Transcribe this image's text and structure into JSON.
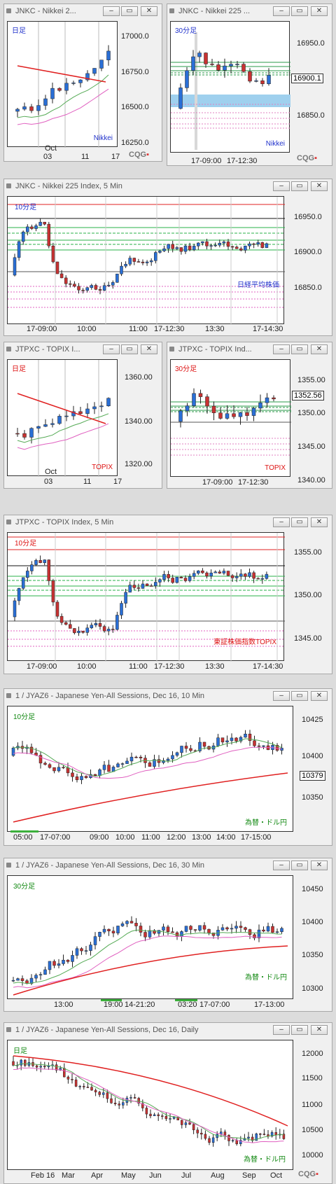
{
  "windows": [
    {
      "id": "w1",
      "title": "JNKC - Nikkei 2...",
      "tf": "日足",
      "tf_color": "#2233cc",
      "sym": "Nikkei",
      "sym_color": "#2233cc",
      "y_labels": [
        "17000.0",
        "16750.0",
        "16500.0",
        "16250.0"
      ],
      "x_labels": [
        "Oct",
        "03",
        "11",
        "17"
      ],
      "logo": "CQG"
    },
    {
      "id": "w2",
      "title": "JNKC - Nikkei 225 ...",
      "tf": "30分足",
      "tf_color": "#2233cc",
      "sym": "Nikkei",
      "sym_color": "#2233cc",
      "y_labels": [
        "16950.0",
        "16900.1",
        "16850.0"
      ],
      "x_labels": [
        "17-09:00",
        "17-12:30"
      ],
      "price": "16900.1",
      "logo": "CQG"
    },
    {
      "id": "w3",
      "title": "JNKC - Nikkei 225 Index, 5 Min",
      "tf": "10分足",
      "tf_color": "#2233cc",
      "sym": "日経平均株価",
      "sym_color": "#2233cc",
      "y_labels": [
        "16950.0",
        "16900.0",
        "16850.0"
      ],
      "x_labels": [
        "17-09:00",
        "10:00",
        "11:00",
        "17-12:30",
        "13:30",
        "17-14:30"
      ]
    },
    {
      "id": "w4",
      "title": "JTPXC - TOPIX I...",
      "tf": "日足",
      "tf_color": "#dd1111",
      "sym": "TOPIX",
      "sym_color": "#dd1111",
      "y_labels": [
        "1360.00",
        "1340.00",
        "1320.00"
      ],
      "x_labels": [
        "Oct",
        "03",
        "11",
        "17"
      ]
    },
    {
      "id": "w5",
      "title": "JTPXC - TOPIX Ind...",
      "tf": "30分足",
      "tf_color": "#dd1111",
      "sym": "TOPIX",
      "sym_color": "#dd1111",
      "y_labels": [
        "1355.00",
        "1352.56",
        "1350.00",
        "1345.00",
        "1340.00"
      ],
      "x_labels": [
        "17-09:00",
        "17-12:30"
      ],
      "price": "1352.56"
    },
    {
      "id": "w6",
      "title": "JTPXC - TOPIX Index, 5 Min",
      "tf": "10分足",
      "tf_color": "#dd1111",
      "sym": "東証株価指数TOPIX",
      "sym_color": "#dd1111",
      "y_labels": [
        "1355.00",
        "1350.00",
        "1345.00"
      ],
      "x_labels": [
        "17-09:00",
        "10:00",
        "11:00",
        "17-12:30",
        "13:30",
        "17-14:30"
      ]
    },
    {
      "id": "w7",
      "title": "1 / JYAZ6 - Japanese Yen-All Sessions, Dec 16, 10 Min",
      "tf": "10分足",
      "tf_color": "#118811",
      "sym": "為替・ドル円",
      "sym_color": "#118811",
      "y_labels": [
        "10425",
        "10400",
        "10379",
        "10350"
      ],
      "x_labels": [
        "05:00",
        "17-07:00",
        "09:00",
        "10:00",
        "11:00",
        "12:00",
        "13:00",
        "14:00",
        "17-15:00"
      ],
      "price": "10379"
    },
    {
      "id": "w8",
      "title": "1 / JYAZ6 - Japanese Yen-All Sessions, Dec 16, 30 Min",
      "tf": "30分足",
      "tf_color": "#118811",
      "sym": "為替・ドル円",
      "sym_color": "#118811",
      "y_labels": [
        "10450",
        "10400",
        "10350",
        "10300"
      ],
      "x_labels": [
        "13:00",
        "19:00",
        "14-21:20",
        "03:20",
        "17-07:00",
        "17-13:00"
      ]
    },
    {
      "id": "w9",
      "title": "1 / JYAZ6 - Japanese Yen-All Sessions, Dec 16, Daily",
      "tf": "日足",
      "tf_color": "#118811",
      "sym": "為替・ドル円",
      "sym_color": "#118811",
      "y_labels": [
        "12000",
        "11500",
        "11000",
        "10500",
        "10000"
      ],
      "x_labels": [
        "Feb 16",
        "Mar",
        "Apr",
        "May",
        "Jun",
        "Jul",
        "Aug",
        "Sep",
        "Oct"
      ],
      "logo": "CQG"
    }
  ],
  "buttons": {
    "minimize": "–",
    "restore": "▭",
    "close": "✕"
  },
  "colors": {
    "bull": "#2a6fd6",
    "bear": "#c83232",
    "ma_green": "#55aa55",
    "ma_pink": "#e060c0",
    "trend_red": "#e02020"
  }
}
